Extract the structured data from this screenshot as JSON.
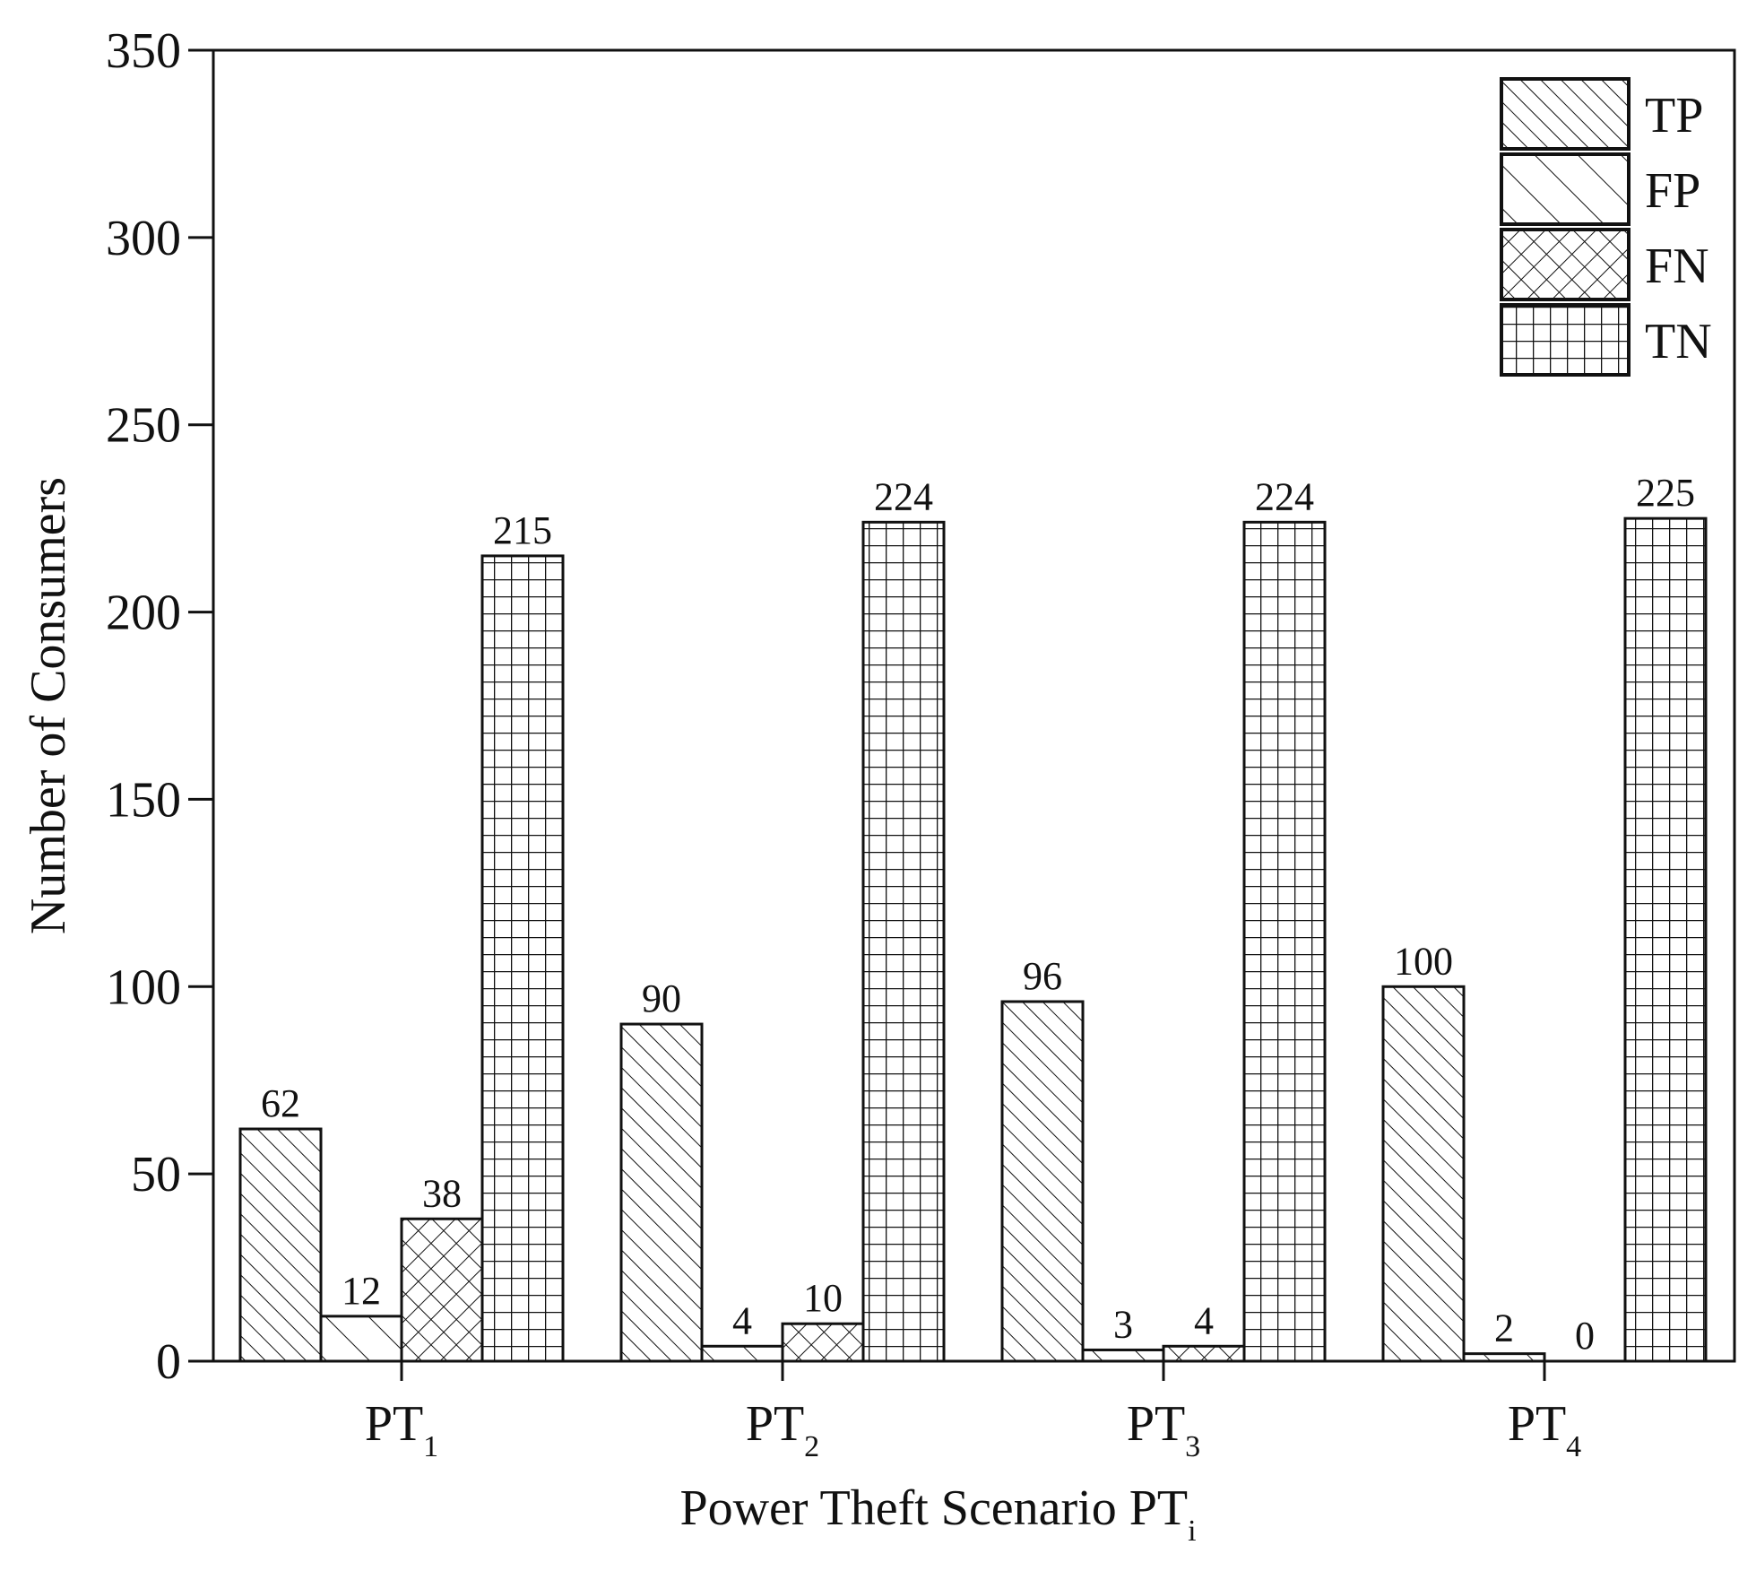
{
  "chart_data": {
    "type": "bar",
    "title": "",
    "xlabel": "Power Theft Scenario PT",
    "xlabel_subscript": "i",
    "ylabel": "Number of Consumers",
    "ylim": [
      0,
      350
    ],
    "yticks": [
      0,
      50,
      100,
      150,
      200,
      250,
      300,
      350
    ],
    "grid": false,
    "legend_position": "top-right",
    "categories": [
      {
        "base": "PT",
        "sub": "1"
      },
      {
        "base": "PT",
        "sub": "2"
      },
      {
        "base": "PT",
        "sub": "3"
      },
      {
        "base": "PT",
        "sub": "4"
      }
    ],
    "series": [
      {
        "name": "TP",
        "pattern": "diag-dense",
        "values": [
          62,
          90,
          96,
          100
        ]
      },
      {
        "name": "FP",
        "pattern": "diag-sparse",
        "values": [
          12,
          4,
          3,
          2
        ]
      },
      {
        "name": "FN",
        "pattern": "crosshatch",
        "values": [
          38,
          10,
          4,
          0
        ]
      },
      {
        "name": "TN",
        "pattern": "grid",
        "values": [
          215,
          224,
          224,
          225
        ]
      }
    ],
    "colors": {
      "stroke": "#111111",
      "fill": "#ffffff"
    }
  }
}
